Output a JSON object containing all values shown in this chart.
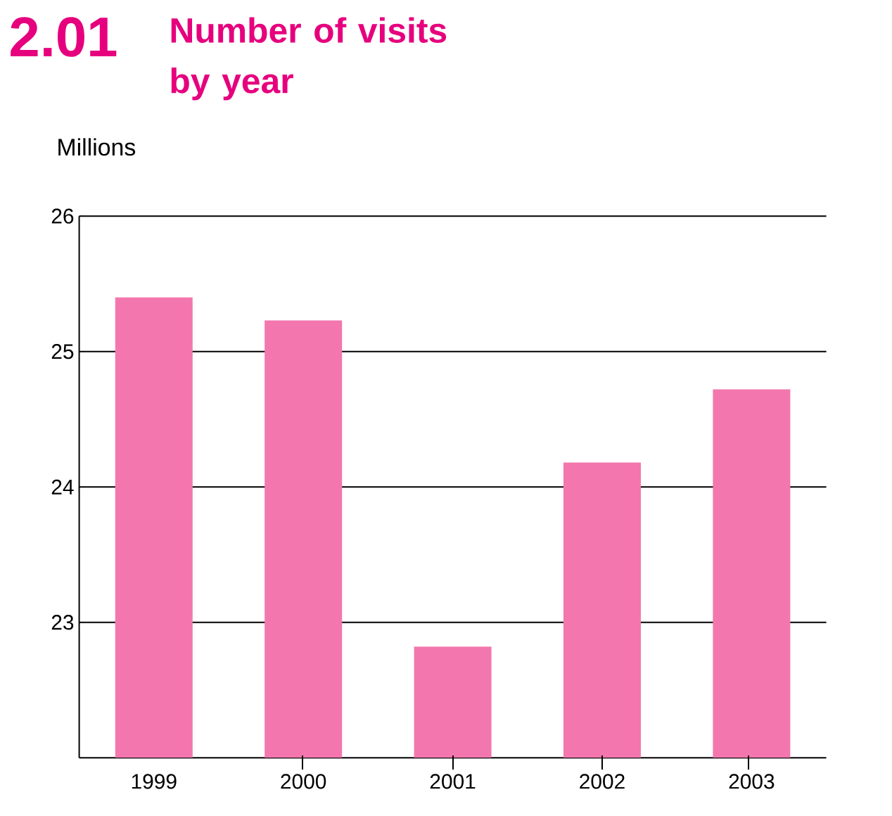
{
  "chart_data": {
    "type": "bar",
    "title": "Number of visits by year",
    "annotations": [
      "2.01"
    ],
    "ylabel": "Millions",
    "categories": [
      "1999",
      "2000",
      "2001",
      "2002",
      "2003"
    ],
    "values": [
      25.4,
      25.23,
      22.82,
      24.18,
      24.72
    ],
    "color": "#f377ae",
    "ylim": [
      22,
      26
    ],
    "yticks": [
      23,
      24,
      25,
      26
    ],
    "grid": "y"
  }
}
